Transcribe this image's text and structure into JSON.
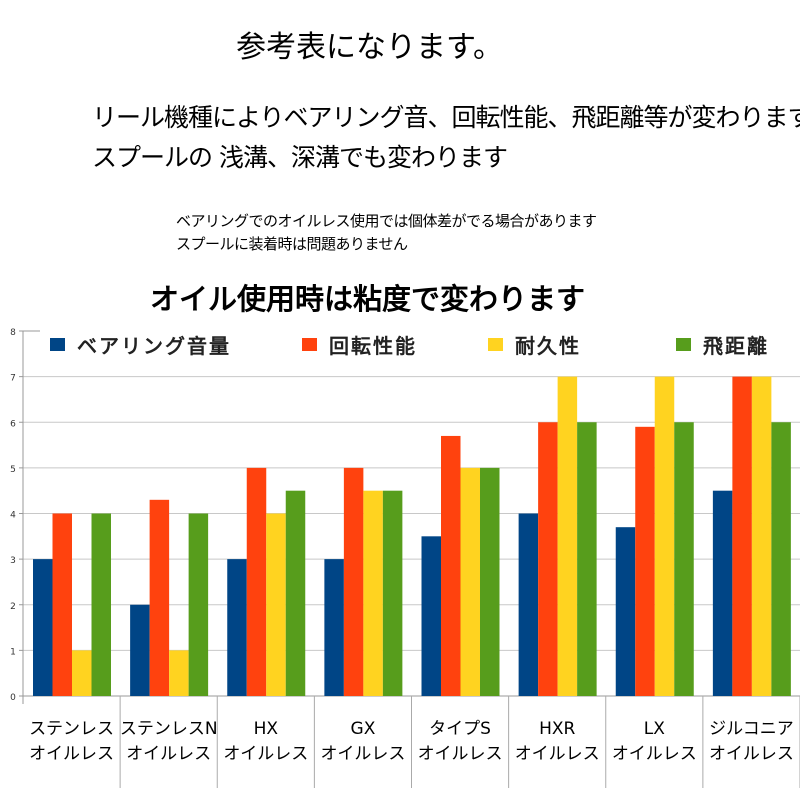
{
  "header": {
    "title": "参考表になります。",
    "line1": "リール機種によりベアリング音、回転性能、飛距離等が変わります。",
    "line2": "スプールの 浅溝、深溝でも変わります",
    "note1": "ベアリングでのオイルレス使用では個体差がでる場合があります",
    "note2": "スプールに装着時は問題ありません",
    "chart_heading": "オイル使用時は粘度で変わります"
  },
  "chart_data": {
    "type": "bar",
    "title": "",
    "xlabel": "",
    "ylabel": "",
    "ylim": [
      0,
      8
    ],
    "yticks": [
      "0",
      "1",
      "2",
      "3",
      "4",
      "5",
      "6",
      "7",
      "8"
    ],
    "grid": true,
    "legend": "top",
    "categories": [
      [
        "ステンレス",
        "オイルレス"
      ],
      [
        "ステンレスN",
        "オイルレス"
      ],
      [
        "HX",
        "オイルレス"
      ],
      [
        "GX",
        "オイルレス"
      ],
      [
        "タイプS",
        "オイルレス"
      ],
      [
        "HXR",
        "オイルレス"
      ],
      [
        "LX",
        "オイルレス"
      ],
      [
        "ジルコニア",
        "オイルレス"
      ]
    ],
    "series": [
      {
        "name": "ベアリング音量",
        "color": "#004586",
        "values": [
          3,
          2,
          3,
          3,
          3.5,
          4,
          3.7,
          4.5
        ]
      },
      {
        "name": "回転性能",
        "color": "#ff420e",
        "values": [
          4,
          4.3,
          5,
          5,
          5.7,
          6,
          5.9,
          7
        ]
      },
      {
        "name": "耐久性",
        "color": "#ffd320",
        "values": [
          1,
          1,
          4,
          4.5,
          5,
          7,
          7,
          7
        ]
      },
      {
        "name": "飛距離",
        "color": "#579d1c",
        "values": [
          4,
          4,
          4.5,
          4.5,
          5,
          6,
          6,
          6
        ]
      }
    ]
  }
}
